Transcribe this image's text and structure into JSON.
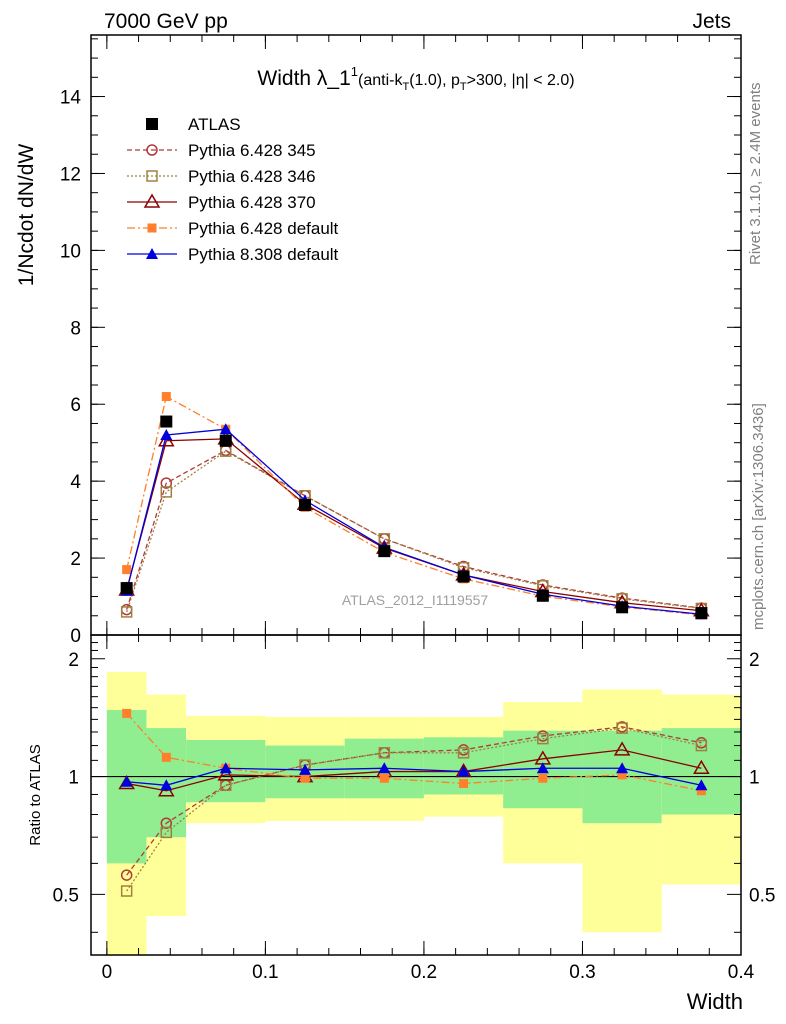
{
  "header": {
    "left": "7000 GeV pp",
    "right": "Jets"
  },
  "side_texts": {
    "rivet": "Rivet 3.1.10, ≥ 2.4M events",
    "mcplots": "mcplots.cern.ch [arXiv:1306.3436]"
  },
  "title": {
    "main": "Width λ_1",
    "sup": "1",
    "cut1": "(anti-k",
    "sub1": "T",
    "cut2": "(1.0), p",
    "sub2": "T",
    "cut3": ">300, |η| < 2.0)"
  },
  "watermark": "ATLAS_2012_I1119557",
  "xlabel": "Width",
  "ylabel_top": "1/Ncdot dN/dW",
  "ylabel_bottom": "Ratio to ATLAS",
  "legend": [
    "ATLAS",
    "Pythia 6.428 345",
    "Pythia 6.428 346",
    "Pythia 6.428 370",
    "Pythia 6.428 default",
    "Pythia 8.308 default"
  ],
  "colors": {
    "atlas": "#000000",
    "p345": "#b03a3a",
    "p346": "#a08040",
    "p370": "#8b0000",
    "pdef": "#ff7f2a",
    "p8": "#0000dd",
    "band_inner": "#90ee90",
    "band_outer": "#ffff99"
  },
  "chart_data": {
    "type": "line",
    "x": [
      0.0125,
      0.0375,
      0.075,
      0.125,
      0.175,
      0.225,
      0.275,
      0.325,
      0.375
    ],
    "bin_edges": [
      0,
      0.025,
      0.05,
      0.1,
      0.15,
      0.2,
      0.25,
      0.3,
      0.35,
      0.4
    ],
    "xlim": [
      -0.01,
      0.4
    ],
    "xticks": [
      "0",
      "0.1",
      "0.2",
      "0.3",
      "0.4"
    ],
    "ylim_main": [
      0,
      15.6
    ],
    "yticks_main": [
      "0",
      "2",
      "4",
      "6",
      "8",
      "10",
      "12",
      "14"
    ],
    "ylim_ratio": [
      0.35,
      2.3
    ],
    "yticks_ratio": [
      "0.5",
      "1",
      "2"
    ],
    "series": [
      {
        "name": "ATLAS",
        "key": "atlas",
        "values": [
          1.22,
          5.55,
          5.05,
          3.38,
          2.18,
          1.52,
          1.02,
          0.72,
          0.57
        ]
      },
      {
        "name": "Pythia 6.428 345",
        "key": "p345",
        "values": [
          0.66,
          3.95,
          4.8,
          3.62,
          2.5,
          1.78,
          1.3,
          0.96,
          0.7
        ]
      },
      {
        "name": "Pythia 6.428 346",
        "key": "p346",
        "values": [
          0.6,
          3.72,
          4.78,
          3.62,
          2.5,
          1.75,
          1.28,
          0.94,
          0.69
        ]
      },
      {
        "name": "Pythia 6.428 370",
        "key": "p370",
        "values": [
          1.17,
          5.05,
          5.1,
          3.4,
          2.26,
          1.56,
          1.13,
          0.84,
          0.63
        ]
      },
      {
        "name": "Pythia 6.428 default",
        "key": "pdef",
        "values": [
          1.7,
          6.2,
          5.35,
          3.32,
          2.15,
          1.46,
          1.01,
          0.73,
          0.52
        ]
      },
      {
        "name": "Pythia 8.308 default",
        "key": "p8",
        "values": [
          1.15,
          5.2,
          5.35,
          3.5,
          2.28,
          1.56,
          1.06,
          0.75,
          0.54
        ]
      }
    ],
    "ratio": {
      "p345": [
        0.56,
        0.76,
        0.95,
        1.07,
        1.15,
        1.17,
        1.27,
        1.34,
        1.22
      ],
      "p346": [
        0.51,
        0.72,
        0.95,
        1.07,
        1.15,
        1.15,
        1.25,
        1.33,
        1.2
      ],
      "p370": [
        0.96,
        0.92,
        1.01,
        1.0,
        1.03,
        1.03,
        1.11,
        1.17,
        1.05
      ],
      "pdef": [
        1.45,
        1.12,
        1.05,
        0.99,
        0.99,
        0.96,
        0.99,
        1.01,
        0.92
      ],
      "p8": [
        0.97,
        0.95,
        1.05,
        1.04,
        1.05,
        1.03,
        1.05,
        1.05,
        0.95
      ]
    },
    "band_inner": {
      "lo": [
        0.6,
        0.7,
        0.86,
        0.88,
        0.88,
        0.9,
        0.83,
        0.76,
        0.8
      ],
      "hi": [
        1.48,
        1.33,
        1.24,
        1.2,
        1.25,
        1.26,
        1.31,
        1.31,
        1.33
      ]
    },
    "band_outer": {
      "lo": [
        0.35,
        0.44,
        0.76,
        0.77,
        0.77,
        0.79,
        0.6,
        0.4,
        0.53
      ],
      "hi": [
        1.85,
        1.62,
        1.43,
        1.42,
        1.42,
        1.42,
        1.55,
        1.67,
        1.62
      ]
    }
  }
}
